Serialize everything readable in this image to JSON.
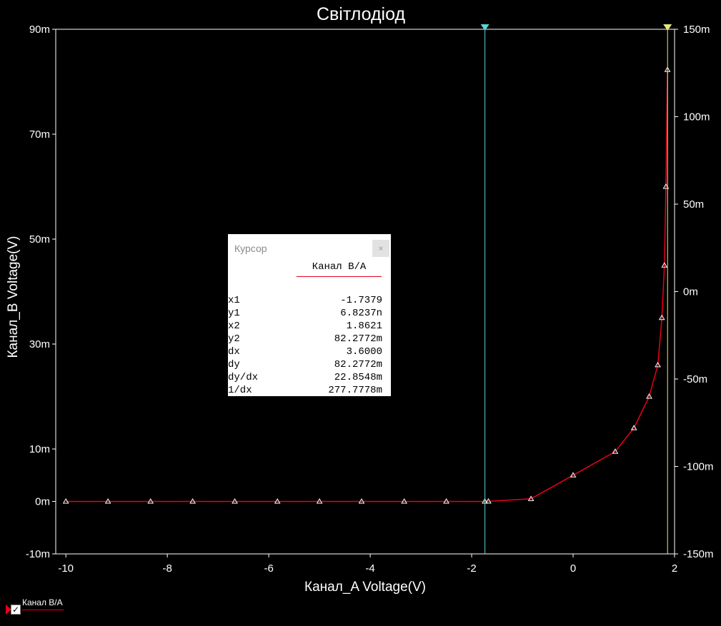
{
  "chart_data": {
    "type": "line",
    "title": "Світлодіод",
    "xlabel": "Канал_A Voltage(V)",
    "ylabel": "Канал_B Voltage(V)",
    "xlim": [
      -10.2,
      2.0
    ],
    "ylim": [
      -10,
      90
    ],
    "y2lim": [
      -150,
      150
    ],
    "x_ticks": [
      "-10",
      "-8",
      "-6",
      "-4",
      "-2",
      "0",
      "2"
    ],
    "x_tick_values": [
      -10,
      -8,
      -6,
      -4,
      -2,
      0,
      2
    ],
    "y_ticks": [
      "-10m",
      "0m",
      "10m",
      "30m",
      "50m",
      "70m",
      "90m"
    ],
    "y_tick_values": [
      -10,
      0,
      10,
      30,
      50,
      70,
      90
    ],
    "y2_ticks": [
      "-150m",
      "-100m",
      "-50m",
      "0m",
      "50m",
      "100m",
      "150m"
    ],
    "y2_tick_values": [
      -150,
      -100,
      -50,
      0,
      50,
      100,
      150
    ],
    "grid": false,
    "series": [
      {
        "name": "Канал B/A",
        "color": "#e8001c",
        "x": [
          -10,
          -9.17,
          -8.33,
          -7.5,
          -6.67,
          -5.83,
          -5.0,
          -4.17,
          -3.33,
          -2.5,
          -1.74,
          -1.67,
          -0.83,
          0.0,
          0.83,
          1.2,
          1.5,
          1.67,
          1.75,
          1.8,
          1.83,
          1.86
        ],
        "y": [
          0,
          0,
          0,
          0,
          0,
          0,
          0,
          0,
          0,
          0,
          0,
          0.02,
          0.5,
          5.0,
          9.5,
          14,
          20,
          26,
          35,
          45,
          60,
          82.28
        ]
      }
    ],
    "cursors": [
      {
        "x": -1.7379,
        "color": "#5ad6d6"
      },
      {
        "x": 1.8621,
        "color": "#e8e87a"
      }
    ]
  },
  "cursor_panel": {
    "title": "Курсор",
    "close": "×",
    "column": "Канал B/A",
    "rows": [
      {
        "label": "x1",
        "value": "-1.7379"
      },
      {
        "label": "y1",
        "value": "6.8237n"
      },
      {
        "label": "x2",
        "value": "1.8621"
      },
      {
        "label": "y2",
        "value": "82.2772m"
      },
      {
        "label": "dx",
        "value": "3.6000"
      },
      {
        "label": "dy",
        "value": "82.2772m"
      },
      {
        "label": "dy/dx",
        "value": "22.8548m"
      },
      {
        "label": "1/dx",
        "value": "277.7778m"
      }
    ]
  },
  "legend": {
    "label": "Канал B/A",
    "checked": "✓"
  }
}
